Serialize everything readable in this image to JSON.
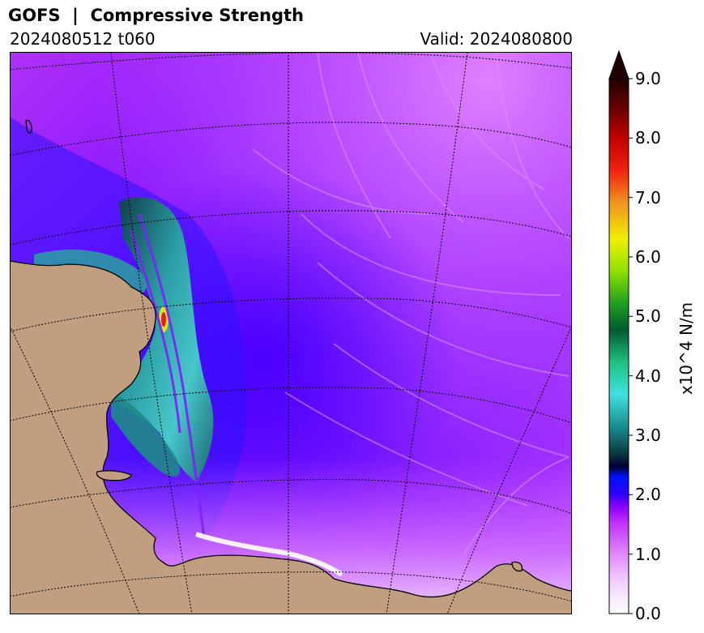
{
  "header": {
    "title": "GOFS  |  Compressive Strength",
    "run": "2024080512 t060",
    "valid": "Valid: 2024080800"
  },
  "colorbar": {
    "unit_label": "x10^4 N/m",
    "min": 0.0,
    "max": 9.0,
    "ticks": [
      "0.0",
      "1.0",
      "2.0",
      "3.0",
      "4.0",
      "5.0",
      "6.0",
      "7.0",
      "8.0",
      "9.0"
    ],
    "extend": "max"
  },
  "colors": {
    "land": "#c19e7f",
    "ice_low": "#cc33ff",
    "ice_mid": "#4400ff",
    "ice_high": "#17807a"
  }
}
